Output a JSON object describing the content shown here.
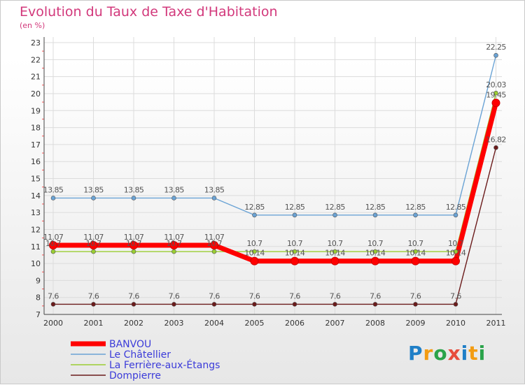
{
  "header": {
    "title": "Evolution du Taux de Taxe d'Habitation",
    "subtitle": "(en %)"
  },
  "logo": {
    "text": "Proxiti",
    "colors": [
      "#1f7fc7",
      "#f39c12",
      "#2aa34a",
      "#e74c3c",
      "#1f7fc7",
      "#f39c12",
      "#2aa34a"
    ]
  },
  "chart_data": {
    "type": "line",
    "x": [
      "2000",
      "2001",
      "2002",
      "2003",
      "2004",
      "2005",
      "2006",
      "2007",
      "2008",
      "2009",
      "2010",
      "2011"
    ],
    "ylim": [
      7,
      23
    ],
    "yticks": [
      "7",
      "8",
      "9",
      "10",
      "11",
      "12",
      "13",
      "14",
      "15",
      "16",
      "17",
      "18",
      "19",
      "20",
      "21",
      "22",
      "23"
    ],
    "grid": true,
    "legend_position": "bottom-left",
    "series": [
      {
        "name": "Dompierre",
        "color": "#6b1b1b",
        "values": [
          7.6,
          7.6,
          7.6,
          7.6,
          7.6,
          7.6,
          7.6,
          7.6,
          7.6,
          7.6,
          7.6,
          16.82
        ],
        "labels": [
          "7.6",
          "7.6",
          "7.6",
          "7.6",
          "7.6",
          "7.6",
          "7.6",
          "7.6",
          "7.6",
          "7.6",
          "7.6",
          "16.82"
        ]
      },
      {
        "name": "La Ferrière-aux-Étangs",
        "color": "#9acd32",
        "values": [
          10.7,
          10.7,
          10.7,
          10.7,
          10.7,
          10.7,
          10.7,
          10.7,
          10.7,
          10.7,
          10.7,
          20.03
        ],
        "labels": [
          "10.7",
          "10.7",
          "10.7",
          "10.7",
          "10.7",
          "10.7",
          "10.7",
          "10.7",
          "10.7",
          "10.7",
          "10.7",
          "20.03"
        ]
      },
      {
        "name": "Le Châtellier",
        "color": "#6aa3d5",
        "values": [
          13.85,
          13.85,
          13.85,
          13.85,
          13.85,
          12.85,
          12.85,
          12.85,
          12.85,
          12.85,
          12.85,
          22.25
        ],
        "labels": [
          "13.85",
          "13.85",
          "13.85",
          "13.85",
          "13.85",
          "12.85",
          "12.85",
          "12.85",
          "12.85",
          "12.85",
          "12.85",
          "22.25"
        ]
      },
      {
        "name": "BANVOU",
        "color": "#ff0000",
        "values": [
          11.07,
          11.07,
          11.07,
          11.07,
          11.07,
          10.14,
          10.14,
          10.14,
          10.14,
          10.14,
          10.14,
          19.45
        ],
        "labels": [
          "11.07",
          "11.07",
          "11.07",
          "11.07",
          "11.07",
          "10.14",
          "10.14",
          "10.14",
          "10.14",
          "10.14",
          "10.14",
          "19.45"
        ]
      }
    ],
    "legend": [
      {
        "name": "BANVOU",
        "color": "#ff0000"
      },
      {
        "name": "Le Châtellier",
        "color": "#6aa3d5"
      },
      {
        "name": "La Ferrière-aux-Étangs",
        "color": "#9acd32"
      },
      {
        "name": "Dompierre",
        "color": "#6b1b1b"
      }
    ]
  }
}
